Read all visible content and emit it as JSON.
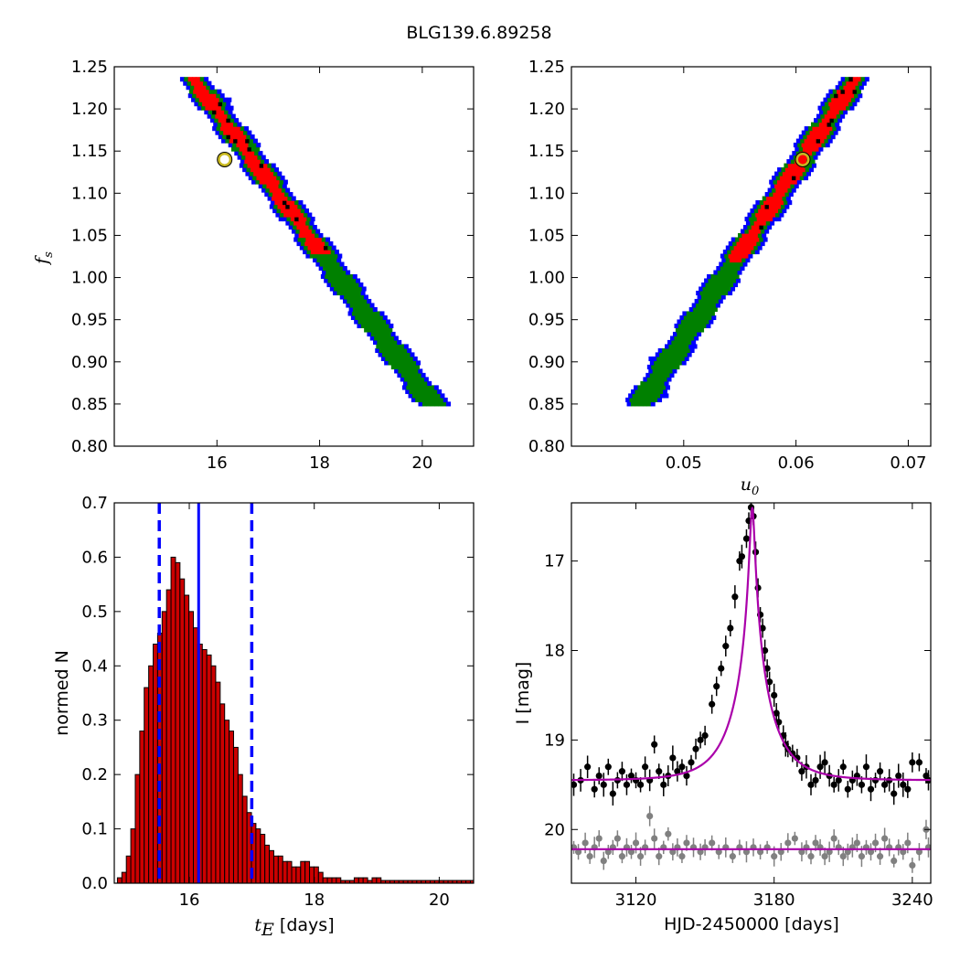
{
  "title": "BLG139.6.89258",
  "colors": {
    "sigma1": "#ff0000",
    "sigma2": "#008000",
    "sigma3": "#0000ff",
    "best": "#000000",
    "marker_ring": "#c8b820",
    "hist_fill": "#cc0000",
    "hist_line": "#0000ff",
    "model": "#aa00aa",
    "data_main": "#000000",
    "data_ref": "#808080"
  },
  "chart_data": [
    {
      "id": "fs-vs-tE",
      "type": "heatmap",
      "description_x": "tE",
      "xlim": [
        14.0,
        21.0
      ],
      "ylim": [
        0.8,
        1.25
      ],
      "xticks": [
        16,
        18,
        20
      ],
      "yticks": [
        0.8,
        0.85,
        0.9,
        0.95,
        1.0,
        1.05,
        1.1,
        1.15,
        1.2,
        1.25
      ],
      "ylabel_main": "f",
      "ylabel_sub": "s",
      "band": {
        "x_at_top": 15.5,
        "x_at_bottom": 20.2,
        "y_top": 1.24,
        "y_bottom": 0.85
      },
      "red_range": [
        1.03,
        1.24
      ],
      "best_fit": {
        "x": 16.15,
        "y": 1.14
      }
    },
    {
      "id": "fs-vs-u0",
      "type": "heatmap",
      "xlim": [
        0.04,
        0.072
      ],
      "ylim": [
        0.8,
        1.25
      ],
      "xticks": [
        0.05,
        0.06,
        0.07
      ],
      "yticks": [
        0.8,
        0.85,
        0.9,
        0.95,
        1.0,
        1.05,
        1.1,
        1.15,
        1.2,
        1.25
      ],
      "xlabel_main": "u",
      "xlabel_sub": "0",
      "band": {
        "x_at_top": 0.0655,
        "x_at_bottom": 0.0462,
        "y_top": 1.24,
        "y_bottom": 0.85
      },
      "red_range": [
        1.02,
        1.24
      ],
      "best_fit": {
        "x": 0.0606,
        "y": 1.14
      }
    },
    {
      "id": "tE-histogram",
      "type": "bar",
      "xlim": [
        14.8,
        20.55
      ],
      "ylim": [
        0.0,
        0.7
      ],
      "xticks": [
        16,
        18,
        20
      ],
      "yticks": [
        0.0,
        0.1,
        0.2,
        0.3,
        0.4,
        0.5,
        0.6,
        0.7
      ],
      "xlabel_main": "t",
      "xlabel_sub": "E",
      "xlabel_rest": " [days]",
      "ylabel": "normed N",
      "bin_start": 14.85,
      "bin_width": 0.0715,
      "values": [
        0.01,
        0.02,
        0.05,
        0.1,
        0.2,
        0.28,
        0.36,
        0.4,
        0.44,
        0.46,
        0.5,
        0.54,
        0.6,
        0.59,
        0.56,
        0.53,
        0.5,
        0.47,
        0.44,
        0.43,
        0.42,
        0.4,
        0.37,
        0.33,
        0.3,
        0.28,
        0.25,
        0.2,
        0.16,
        0.13,
        0.11,
        0.1,
        0.09,
        0.07,
        0.06,
        0.05,
        0.05,
        0.04,
        0.04,
        0.03,
        0.03,
        0.04,
        0.04,
        0.03,
        0.03,
        0.02,
        0.01,
        0.01,
        0.01,
        0.01,
        0.005,
        0.005,
        0.005,
        0.01,
        0.01,
        0.01,
        0.005,
        0.01,
        0.01,
        0.005,
        0.005,
        0.005,
        0.005,
        0.005,
        0.005,
        0.005,
        0.005,
        0.005,
        0.005,
        0.005,
        0.005,
        0.005,
        0.005,
        0.005,
        0.005,
        0.005,
        0.005,
        0.005,
        0.005,
        0.005
      ],
      "median": 16.15,
      "lower": 15.52,
      "upper": 17.0
    },
    {
      "id": "light-curve",
      "type": "scatter",
      "xlim": [
        3092,
        3248
      ],
      "ylim": [
        20.6,
        16.35
      ],
      "xticks": [
        3120,
        3180,
        3240
      ],
      "yticks": [
        17,
        18,
        19,
        20
      ],
      "xlabel": "HJD-2450000 [days]",
      "ylabel": "I [mag]",
      "model": {
        "t0": 3170.5,
        "tE": 16.15,
        "u0": 0.0606,
        "base_mag": 19.45,
        "peak_mag": 16.4
      },
      "reference_level": 20.22,
      "series": [
        {
          "name": "",
          "points": [
            [
              3093,
              19.5
            ],
            [
              3096,
              19.45
            ],
            [
              3099,
              19.3
            ],
            [
              3102,
              19.55
            ],
            [
              3104,
              19.4
            ],
            [
              3106,
              19.5
            ],
            [
              3108,
              19.3
            ],
            [
              3110,
              19.6
            ],
            [
              3112,
              19.45
            ],
            [
              3114,
              19.35
            ],
            [
              3116,
              19.5
            ],
            [
              3118,
              19.4
            ],
            [
              3120,
              19.45
            ],
            [
              3122,
              19.5
            ],
            [
              3124,
              19.3
            ],
            [
              3126,
              19.45
            ],
            [
              3128,
              19.05
            ],
            [
              3130,
              19.35
            ],
            [
              3132,
              19.5
            ],
            [
              3134,
              19.4
            ],
            [
              3136,
              19.2
            ],
            [
              3138,
              19.35
            ],
            [
              3140,
              19.3
            ],
            [
              3142,
              19.4
            ],
            [
              3144,
              19.25
            ],
            [
              3146,
              19.1
            ],
            [
              3148,
              19.0
            ],
            [
              3150,
              18.95
            ],
            [
              3153,
              18.6
            ],
            [
              3155,
              18.4
            ],
            [
              3157,
              18.2
            ],
            [
              3159,
              17.95
            ],
            [
              3161,
              17.75
            ],
            [
              3163,
              17.4
            ],
            [
              3165,
              17.0
            ],
            [
              3166,
              16.95
            ],
            [
              3168,
              16.75
            ],
            [
              3169,
              16.55
            ],
            [
              3170,
              16.4
            ],
            [
              3171,
              16.5
            ],
            [
              3172,
              16.9
            ],
            [
              3173,
              17.3
            ],
            [
              3174,
              17.6
            ],
            [
              3175,
              17.75
            ],
            [
              3176,
              18.0
            ],
            [
              3177,
              18.2
            ],
            [
              3178,
              18.35
            ],
            [
              3180,
              18.5
            ],
            [
              3181,
              18.7
            ],
            [
              3182,
              18.8
            ],
            [
              3184,
              18.95
            ],
            [
              3185,
              19.05
            ],
            [
              3186,
              19.1
            ],
            [
              3188,
              19.15
            ],
            [
              3190,
              19.2
            ],
            [
              3192,
              19.35
            ],
            [
              3194,
              19.3
            ],
            [
              3196,
              19.5
            ],
            [
              3198,
              19.45
            ],
            [
              3200,
              19.3
            ],
            [
              3202,
              19.25
            ],
            [
              3204,
              19.4
            ],
            [
              3206,
              19.5
            ],
            [
              3208,
              19.45
            ],
            [
              3210,
              19.3
            ],
            [
              3212,
              19.55
            ],
            [
              3214,
              19.45
            ],
            [
              3216,
              19.4
            ],
            [
              3218,
              19.5
            ],
            [
              3220,
              19.3
            ],
            [
              3222,
              19.55
            ],
            [
              3224,
              19.45
            ],
            [
              3226,
              19.35
            ],
            [
              3228,
              19.5
            ],
            [
              3230,
              19.45
            ],
            [
              3232,
              19.6
            ],
            [
              3234,
              19.4
            ],
            [
              3236,
              19.5
            ],
            [
              3238,
              19.55
            ],
            [
              3240,
              19.25
            ],
            [
              3243,
              19.25
            ],
            [
              3246,
              19.4
            ],
            [
              3247,
              19.45
            ]
          ]
        },
        {
          "name": "",
          "points": [
            [
              3093,
              20.2
            ],
            [
              3095,
              20.25
            ],
            [
              3098,
              20.15
            ],
            [
              3100,
              20.3
            ],
            [
              3102,
              20.2
            ],
            [
              3104,
              20.1
            ],
            [
              3106,
              20.35
            ],
            [
              3108,
              20.25
            ],
            [
              3110,
              20.2
            ],
            [
              3112,
              20.1
            ],
            [
              3114,
              20.3
            ],
            [
              3116,
              20.2
            ],
            [
              3118,
              20.25
            ],
            [
              3120,
              20.15
            ],
            [
              3122,
              20.3
            ],
            [
              3124,
              20.2
            ],
            [
              3126,
              19.85
            ],
            [
              3128,
              20.1
            ],
            [
              3130,
              20.3
            ],
            [
              3132,
              20.2
            ],
            [
              3134,
              20.05
            ],
            [
              3136,
              20.25
            ],
            [
              3138,
              20.2
            ],
            [
              3140,
              20.3
            ],
            [
              3142,
              20.15
            ],
            [
              3145,
              20.2
            ],
            [
              3148,
              20.25
            ],
            [
              3150,
              20.2
            ],
            [
              3153,
              20.15
            ],
            [
              3156,
              20.25
            ],
            [
              3159,
              20.2
            ],
            [
              3162,
              20.3
            ],
            [
              3165,
              20.2
            ],
            [
              3168,
              20.25
            ],
            [
              3171,
              20.2
            ],
            [
              3174,
              20.25
            ],
            [
              3177,
              20.2
            ],
            [
              3180,
              20.3
            ],
            [
              3183,
              20.25
            ],
            [
              3186,
              20.15
            ],
            [
              3189,
              20.1
            ],
            [
              3192,
              20.25
            ],
            [
              3194,
              20.2
            ],
            [
              3196,
              20.3
            ],
            [
              3198,
              20.15
            ],
            [
              3200,
              20.2
            ],
            [
              3202,
              20.3
            ],
            [
              3204,
              20.25
            ],
            [
              3206,
              20.1
            ],
            [
              3208,
              20.2
            ],
            [
              3210,
              20.3
            ],
            [
              3212,
              20.25
            ],
            [
              3214,
              20.2
            ],
            [
              3216,
              20.15
            ],
            [
              3218,
              20.3
            ],
            [
              3220,
              20.2
            ],
            [
              3222,
              20.25
            ],
            [
              3224,
              20.15
            ],
            [
              3226,
              20.3
            ],
            [
              3228,
              20.1
            ],
            [
              3230,
              20.2
            ],
            [
              3232,
              20.35
            ],
            [
              3234,
              20.2
            ],
            [
              3236,
              20.25
            ],
            [
              3238,
              20.15
            ],
            [
              3240,
              20.4
            ],
            [
              3243,
              20.25
            ],
            [
              3246,
              20.0
            ],
            [
              3247,
              20.2
            ]
          ]
        }
      ]
    }
  ]
}
